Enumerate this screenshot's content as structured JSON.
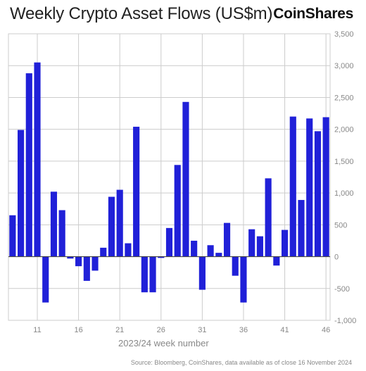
{
  "title": "Weekly Crypto Asset Flows (US$m)",
  "brand": "CoinShares",
  "source": "Source: Bloomberg, CoinShares, data available as of close 16 November 2024",
  "colors": {
    "bar": "#2020d8",
    "grid": "#cccccc",
    "axis": "#444444",
    "text": "#888888"
  },
  "chart_data": {
    "type": "bar",
    "xlabel": "2023/24 week number",
    "ylabel": "",
    "ylim": [
      -1000,
      3500
    ],
    "yticks": [
      -1000,
      -500,
      0,
      500,
      1000,
      1500,
      2000,
      2500,
      3000,
      3500
    ],
    "ytick_labels": [
      "-1,000",
      "-500",
      "0",
      "500",
      "1,000",
      "1,500",
      "2,000",
      "2,500",
      "3,000",
      "3,500"
    ],
    "xticks": [
      11,
      16,
      21,
      26,
      31,
      36,
      41,
      46
    ],
    "xlim": [
      7.5,
      46.5
    ],
    "grid": true,
    "categories": [
      8,
      9,
      10,
      11,
      12,
      13,
      14,
      15,
      16,
      17,
      18,
      19,
      20,
      21,
      22,
      23,
      24,
      25,
      26,
      27,
      28,
      29,
      30,
      31,
      32,
      33,
      34,
      35,
      36,
      37,
      38,
      39,
      40,
      41,
      42,
      43,
      44,
      45,
      46
    ],
    "values": [
      650,
      1990,
      2880,
      3050,
      -720,
      1020,
      730,
      -30,
      -150,
      -380,
      -220,
      140,
      940,
      1050,
      210,
      2040,
      -560,
      -560,
      -20,
      450,
      1440,
      2430,
      250,
      -520,
      180,
      60,
      530,
      -300,
      -720,
      430,
      320,
      1230,
      -140,
      420,
      2200,
      890,
      2170,
      1970,
      2190
    ]
  }
}
